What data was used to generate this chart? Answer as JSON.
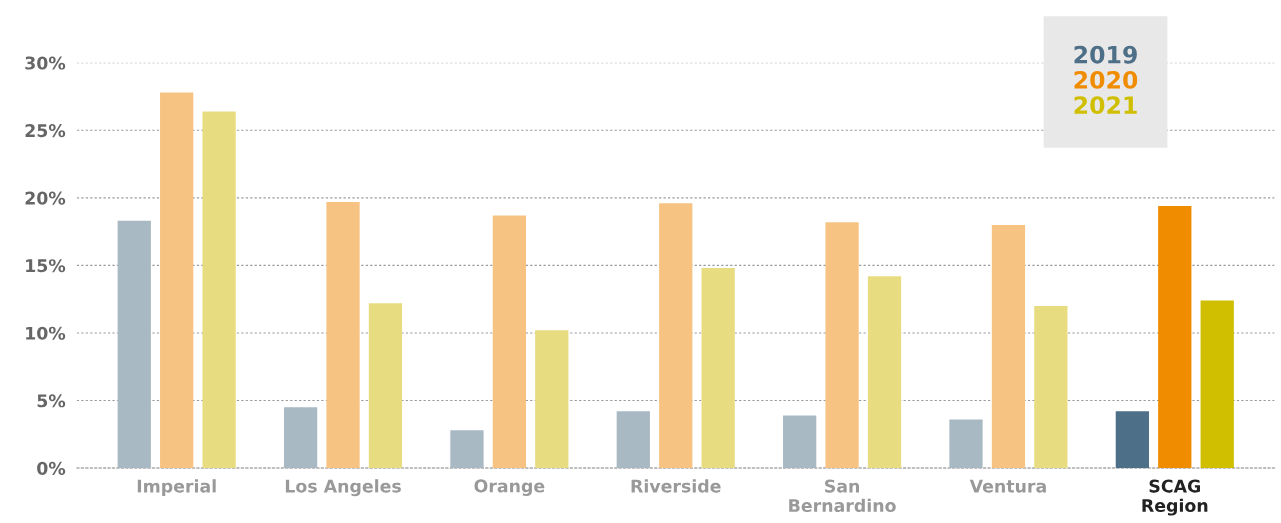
{
  "chart_data": {
    "type": "bar",
    "categories": [
      "Imperial",
      "Los Angeles",
      "Orange",
      "Riverside",
      "San\nBernardino",
      "Ventura",
      "SCAG\nRegion"
    ],
    "series": [
      {
        "name": "2019",
        "color": "#4d6f87",
        "colors": [
          "#a9b9c4",
          "#a9b9c4",
          "#a9b9c4",
          "#a9b9c4",
          "#a9b9c4",
          "#a9b9c4",
          "#4d6f87"
        ],
        "values": [
          18.3,
          4.5,
          2.8,
          4.2,
          3.9,
          3.6,
          4.2
        ]
      },
      {
        "name": "2020",
        "color": "#f08c00",
        "colors": [
          "#f7c382",
          "#f7c382",
          "#f7c382",
          "#f7c382",
          "#f7c382",
          "#f7c382",
          "#f08c00"
        ],
        "values": [
          27.8,
          19.7,
          18.7,
          19.6,
          18.2,
          18.0,
          19.4
        ]
      },
      {
        "name": "2021",
        "color": "#d0be00",
        "colors": [
          "#e8dc80",
          "#e8dc80",
          "#e8dc80",
          "#e8dc80",
          "#e8dc80",
          "#e8dc80",
          "#d0be00"
        ],
        "values": [
          26.4,
          12.2,
          10.2,
          14.8,
          14.2,
          12.0,
          12.4
        ]
      }
    ],
    "ylim": [
      0,
      30
    ],
    "yticks": [
      {
        "value": 0,
        "label": "0%"
      },
      {
        "value": 5,
        "label": "5%"
      },
      {
        "value": 10,
        "label": "10%"
      },
      {
        "value": 15,
        "label": "15%"
      },
      {
        "value": 20,
        "label": "20%"
      },
      {
        "value": 25,
        "label": "25%"
      },
      {
        "value": 30,
        "label": "30%"
      }
    ],
    "grid": "y",
    "legend": "top right"
  }
}
